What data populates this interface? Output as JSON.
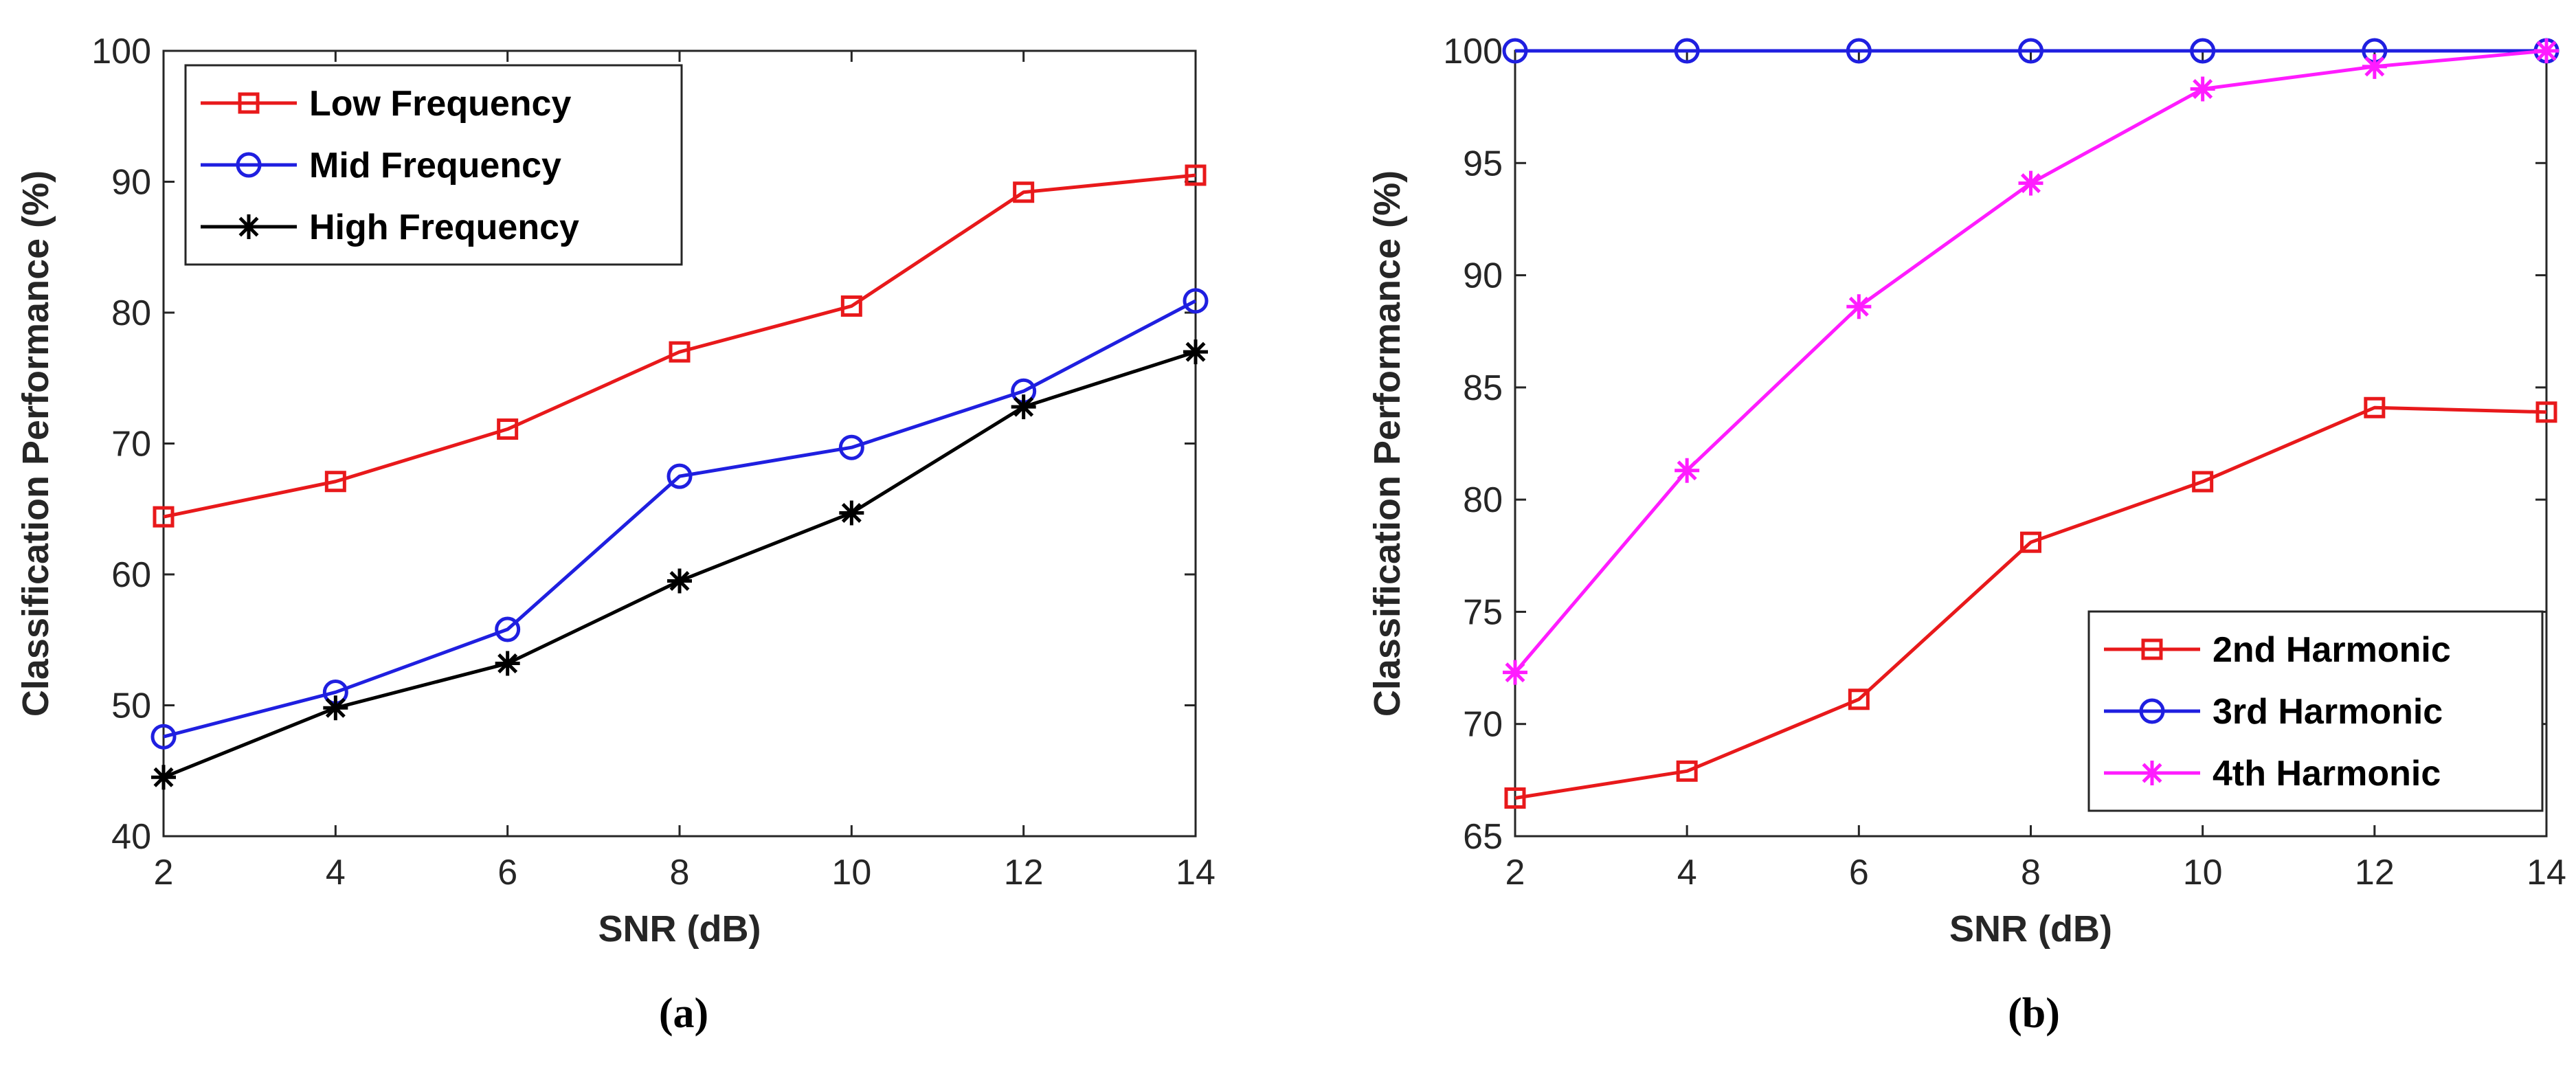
{
  "chart_data": [
    {
      "type": "line",
      "panel": "a",
      "caption": "(a)",
      "title": "",
      "xlabel": "SNR (dB)",
      "ylabel": "Classification Performance (%)",
      "x": [
        2,
        4,
        6,
        8,
        10,
        12,
        14
      ],
      "xlim": [
        2,
        14
      ],
      "ylim": [
        40,
        100
      ],
      "xticks": [
        2,
        4,
        6,
        8,
        10,
        12,
        14
      ],
      "yticks": [
        40,
        50,
        60,
        70,
        80,
        90,
        100
      ],
      "grid": false,
      "legend_location": "top-left",
      "series": [
        {
          "name": "Low Frequency",
          "color": "#e8191b",
          "marker": "square",
          "values": [
            64.4,
            67.1,
            71.1,
            77.0,
            80.5,
            89.2,
            90.5
          ]
        },
        {
          "name": "Mid Frequency",
          "color": "#1f1fe0",
          "marker": "circle",
          "values": [
            47.6,
            51.0,
            55.8,
            67.5,
            69.7,
            74.0,
            80.9
          ]
        },
        {
          "name": "High Frequency",
          "color": "#000000",
          "marker": "asterisk",
          "values": [
            44.5,
            49.8,
            53.2,
            59.5,
            64.7,
            72.8,
            77.0
          ]
        }
      ]
    },
    {
      "type": "line",
      "panel": "b",
      "caption": "(b)",
      "title": "",
      "xlabel": "SNR (dB)",
      "ylabel": "Classification Performance (%)",
      "x": [
        2,
        4,
        6,
        8,
        10,
        12,
        14
      ],
      "xlim": [
        2,
        14
      ],
      "ylim": [
        65,
        100
      ],
      "xticks": [
        2,
        4,
        6,
        8,
        10,
        12,
        14
      ],
      "yticks": [
        65,
        70,
        75,
        80,
        85,
        90,
        95,
        100
      ],
      "grid": false,
      "legend_location": "bottom-right",
      "series": [
        {
          "name": "2nd Harmonic",
          "color": "#e8191b",
          "marker": "square",
          "values": [
            66.7,
            67.9,
            71.1,
            78.1,
            80.8,
            84.1,
            83.9
          ]
        },
        {
          "name": "3rd Harmonic",
          "color": "#1f1fe0",
          "marker": "circle",
          "values": [
            100,
            100,
            100,
            100,
            100,
            100,
            100
          ]
        },
        {
          "name": "4th Harmonic",
          "color": "#ff1cff",
          "marker": "asterisk",
          "values": [
            72.3,
            81.3,
            88.6,
            94.1,
            98.3,
            99.3,
            100
          ]
        }
      ]
    }
  ]
}
